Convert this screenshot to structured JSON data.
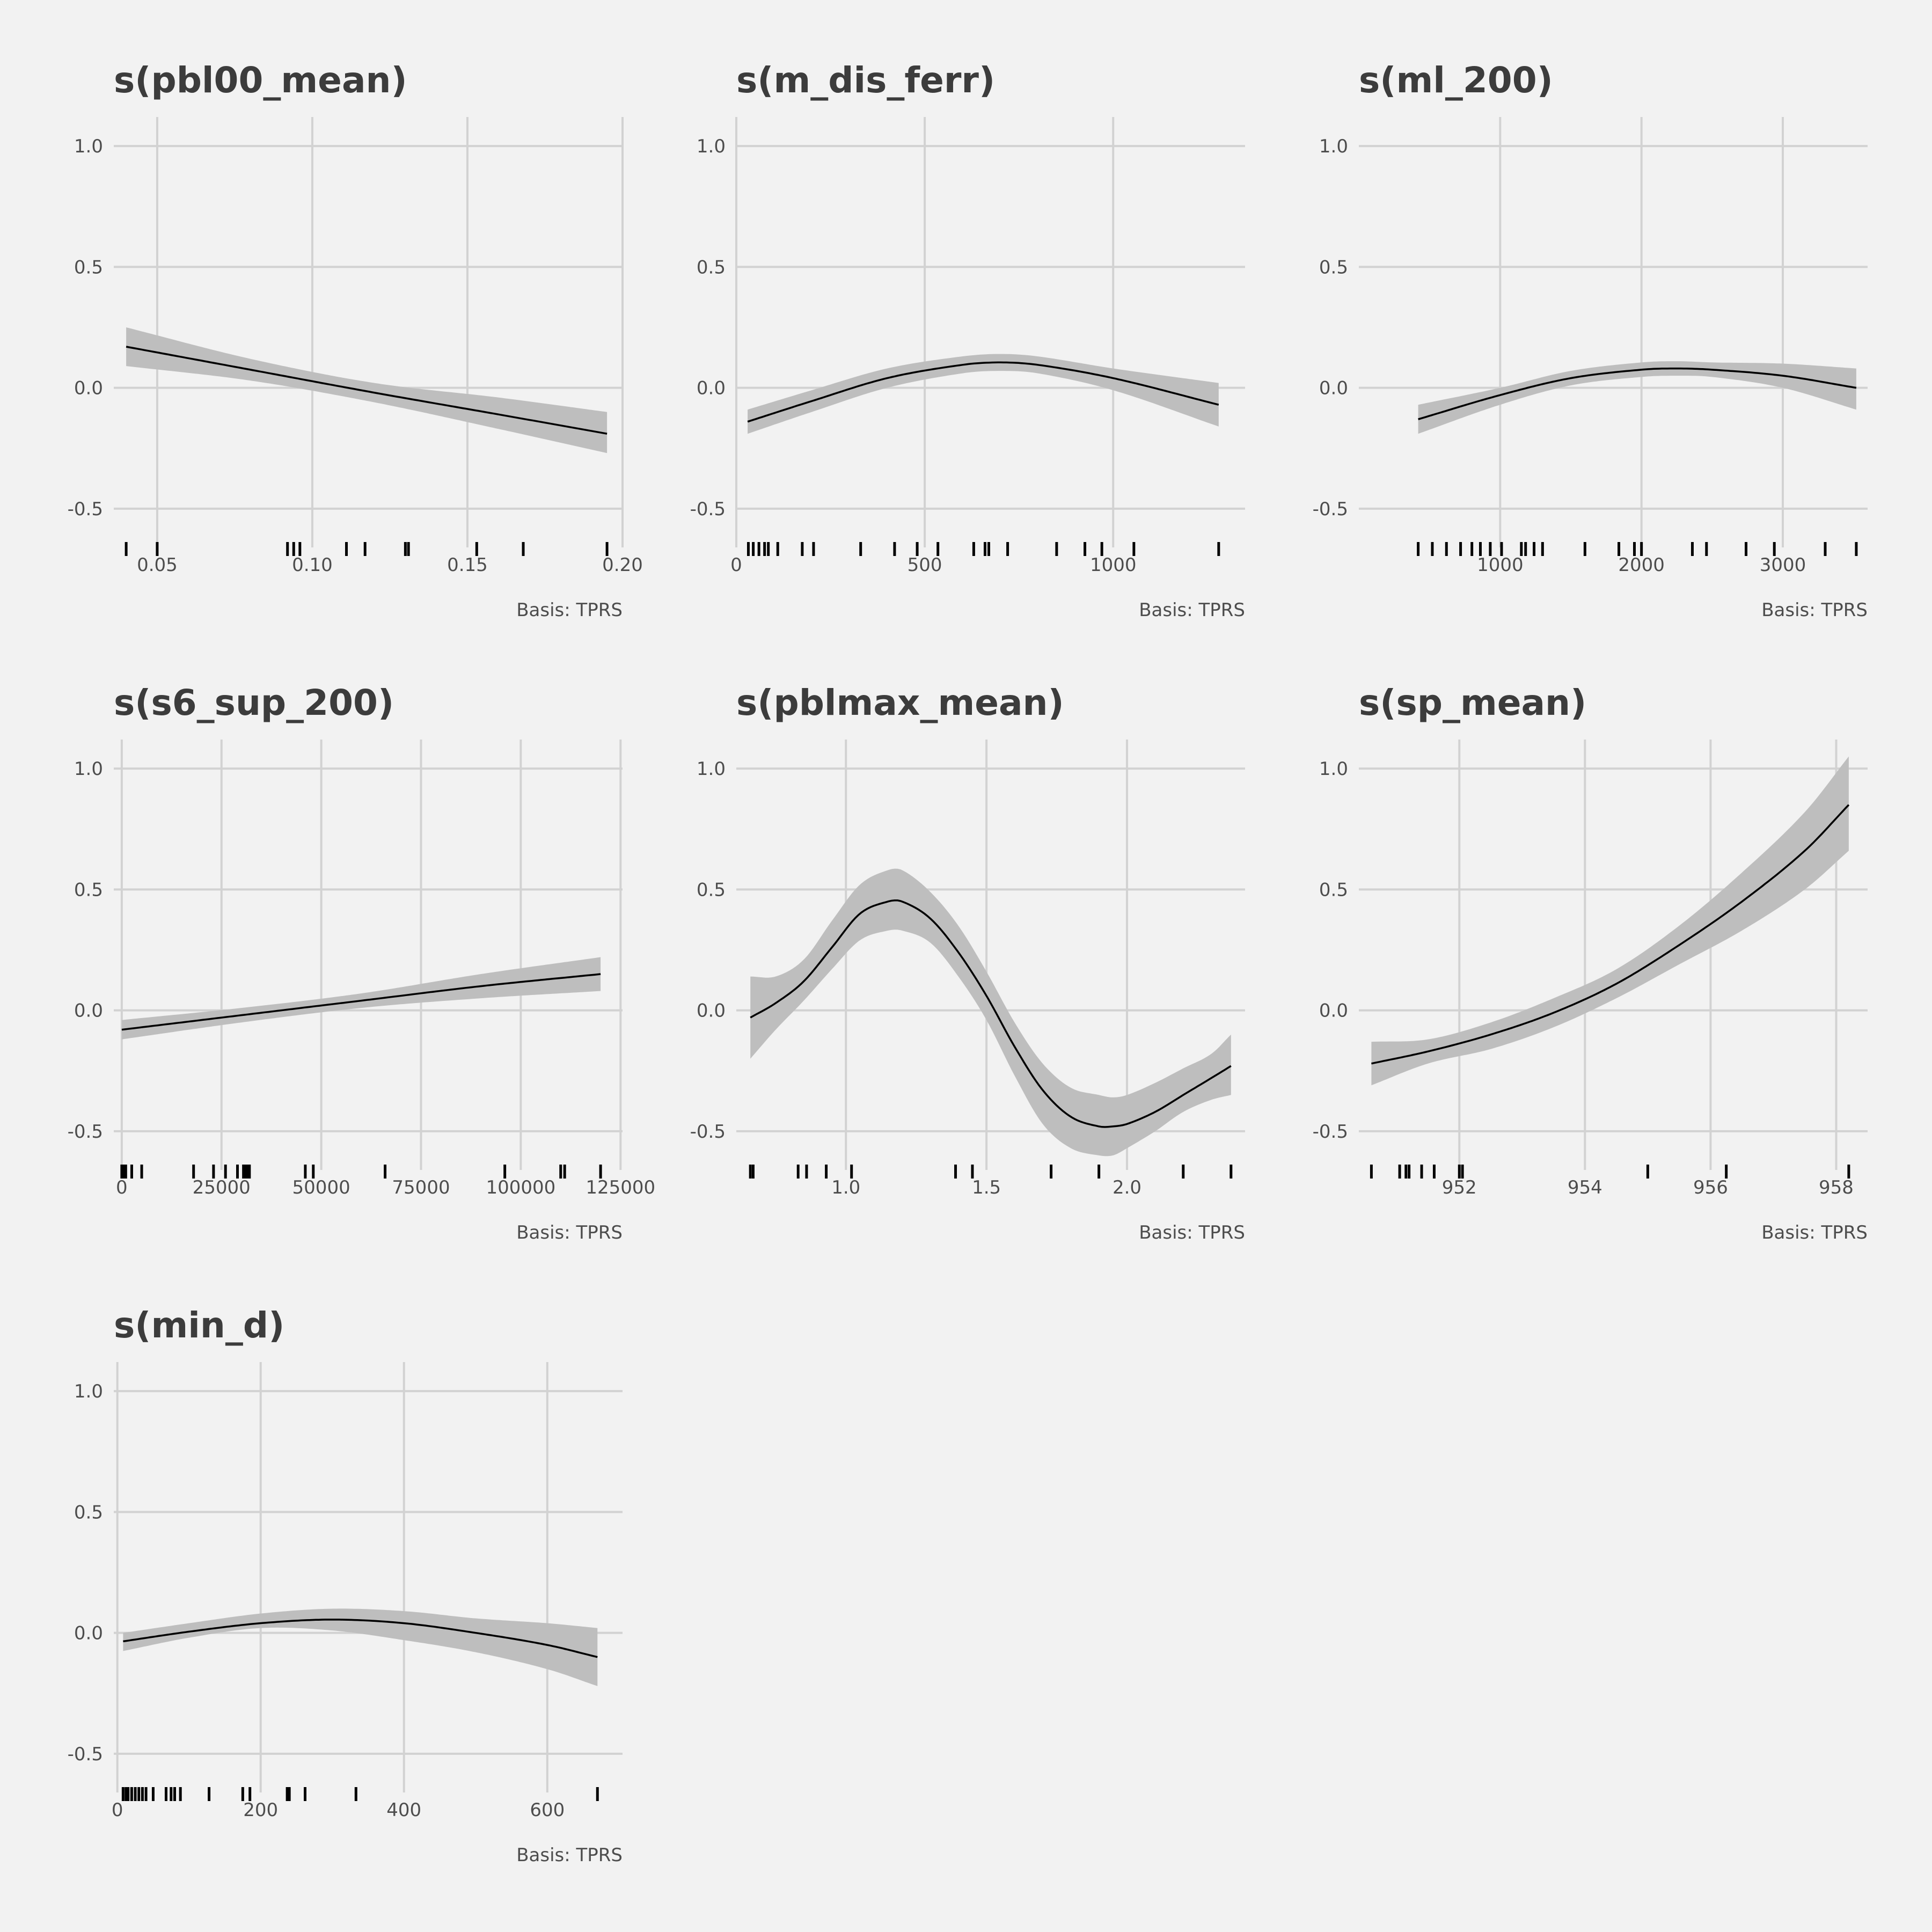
{
  "background": "#F2F2F2",
  "colors": {
    "band": "#BEBEBE",
    "line": "#000000",
    "grid": "#D2D2D2",
    "text": "#3C3C3C"
  },
  "chart_data": [
    {
      "type": "line",
      "title": "s(pbl00_mean)",
      "caption": "Basis: TPRS",
      "xlim": [
        0.036,
        0.2
      ],
      "ylim": [
        -0.66,
        1.12
      ],
      "x_ticks": [
        0.05,
        0.1,
        0.15,
        0.2
      ],
      "x_tick_labels": [
        "0.05",
        "0.10",
        "0.15",
        "0.20"
      ],
      "y_ticks": [
        1.0,
        0.5,
        0.0,
        -0.5
      ],
      "y_tick_labels": [
        "1.0",
        "0.5",
        "0.0",
        "-0.5"
      ],
      "x": [
        0.04,
        0.08,
        0.12,
        0.16,
        0.195
      ],
      "y": [
        0.17,
        0.075,
        -0.02,
        -0.11,
        -0.19
      ],
      "lower": [
        0.09,
        0.03,
        -0.06,
        -0.17,
        -0.27
      ],
      "upper": [
        0.25,
        0.12,
        0.02,
        -0.04,
        -0.1
      ],
      "rug": [
        0.04,
        0.05,
        0.092,
        0.094,
        0.096,
        0.111,
        0.117,
        0.13,
        0.131,
        0.153,
        0.168,
        0.195
      ]
    },
    {
      "type": "line",
      "title": "s(m_dis_ferr)",
      "caption": "Basis: TPRS",
      "xlim": [
        0,
        1350
      ],
      "ylim": [
        -0.66,
        1.12
      ],
      "x_ticks": [
        0,
        500,
        1000
      ],
      "x_tick_labels": [
        "0",
        "500",
        "1000"
      ],
      "y_ticks": [
        1.0,
        0.5,
        0.0,
        -0.5
      ],
      "y_tick_labels": [
        "1.0",
        "0.5",
        "0.0",
        "-0.5"
      ],
      "x": [
        30,
        200,
        400,
        600,
        700,
        800,
        1000,
        1280
      ],
      "y": [
        -0.14,
        -0.055,
        0.04,
        0.095,
        0.105,
        0.095,
        0.04,
        -0.07
      ],
      "lower": [
        -0.19,
        -0.1,
        0.0,
        0.06,
        0.07,
        0.06,
        -0.01,
        -0.16
      ],
      "upper": [
        -0.09,
        -0.01,
        0.08,
        0.13,
        0.14,
        0.13,
        0.08,
        0.02
      ],
      "rug": [
        32,
        45,
        60,
        75,
        85,
        110,
        175,
        205,
        330,
        420,
        480,
        535,
        630,
        660,
        670,
        720,
        850,
        925,
        970,
        1055,
        1280
      ]
    },
    {
      "type": "line",
      "title": "s(ml_200)",
      "caption": "Basis: TPRS",
      "xlim": [
        0,
        3600
      ],
      "ylim": [
        -0.66,
        1.12
      ],
      "x_ticks": [
        1000,
        2000,
        3000
      ],
      "x_tick_labels": [
        "1000",
        "2000",
        "3000"
      ],
      "y_ticks": [
        1.0,
        0.5,
        0.0,
        -0.5
      ],
      "y_tick_labels": [
        "1.0",
        "0.5",
        "0.0",
        "-0.5"
      ],
      "x": [
        420,
        1000,
        1500,
        2000,
        2250,
        2500,
        3000,
        3520
      ],
      "y": [
        -0.13,
        -0.03,
        0.04,
        0.075,
        0.08,
        0.075,
        0.05,
        0.0
      ],
      "lower": [
        -0.19,
        -0.07,
        0.01,
        0.045,
        0.05,
        0.045,
        0.0,
        -0.09
      ],
      "upper": [
        -0.07,
        0.0,
        0.07,
        0.105,
        0.11,
        0.105,
        0.1,
        0.08
      ],
      "rug": [
        420,
        520,
        620,
        720,
        800,
        860,
        930,
        1010,
        1150,
        1180,
        1240,
        1300,
        1600,
        1840,
        1950,
        2000,
        2360,
        2460,
        2740,
        2940,
        3300,
        3520
      ]
    },
    {
      "type": "line",
      "title": "s(s6_sup_200)",
      "caption": "Basis: TPRS",
      "xlim": [
        -2000,
        125500
      ],
      "ylim": [
        -0.66,
        1.12
      ],
      "x_ticks": [
        0,
        25000,
        50000,
        75000,
        100000,
        125000
      ],
      "x_tick_labels": [
        "0",
        "25000",
        "50000",
        "75000",
        "100000",
        "125000"
      ],
      "y_ticks": [
        1.0,
        0.5,
        0.0,
        -0.5
      ],
      "y_tick_labels": [
        "1.0",
        "0.5",
        "0.0",
        "-0.5"
      ],
      "x": [
        0,
        30000,
        60000,
        90000,
        120000
      ],
      "y": [
        -0.08,
        -0.02,
        0.04,
        0.1,
        0.15
      ],
      "lower": [
        -0.12,
        -0.05,
        0.01,
        0.05,
        0.08
      ],
      "upper": [
        -0.04,
        0.01,
        0.07,
        0.15,
        0.22
      ],
      "rug": [
        0,
        500,
        1000,
        2500,
        5000,
        18000,
        23000,
        26000,
        29000,
        30500,
        31000,
        31500,
        32000,
        46000,
        48000,
        66000,
        96000,
        110000,
        111000,
        120000
      ]
    },
    {
      "type": "line",
      "title": "s(pblmax_mean)",
      "caption": "Basis: TPRS",
      "xlim": [
        0.61,
        2.42
      ],
      "ylim": [
        -0.66,
        1.12
      ],
      "x_ticks": [
        1.0,
        1.5,
        2.0
      ],
      "x_tick_labels": [
        "1.0",
        "1.5",
        "2.0"
      ],
      "y_ticks": [
        1.0,
        0.5,
        0.0,
        -0.5
      ],
      "y_tick_labels": [
        "1.0",
        "0.5",
        "0.0",
        "-0.5"
      ],
      "x": [
        0.66,
        0.75,
        0.85,
        0.95,
        1.05,
        1.15,
        1.2,
        1.3,
        1.4,
        1.5,
        1.6,
        1.7,
        1.8,
        1.9,
        1.95,
        2.0,
        2.1,
        2.2,
        2.3,
        2.37
      ],
      "y": [
        -0.03,
        0.03,
        0.12,
        0.26,
        0.4,
        0.45,
        0.45,
        0.38,
        0.24,
        0.06,
        -0.15,
        -0.33,
        -0.44,
        -0.48,
        -0.48,
        -0.47,
        -0.42,
        -0.35,
        -0.28,
        -0.23
      ],
      "lower": [
        -0.2,
        -0.08,
        0.04,
        0.17,
        0.29,
        0.33,
        0.33,
        0.28,
        0.14,
        -0.04,
        -0.27,
        -0.47,
        -0.57,
        -0.6,
        -0.6,
        -0.57,
        -0.5,
        -0.42,
        -0.37,
        -0.35
      ],
      "upper": [
        0.14,
        0.14,
        0.21,
        0.37,
        0.52,
        0.58,
        0.58,
        0.49,
        0.35,
        0.16,
        -0.05,
        -0.22,
        -0.32,
        -0.35,
        -0.36,
        -0.35,
        -0.3,
        -0.24,
        -0.18,
        -0.1
      ],
      "rug": [
        0.66,
        0.67,
        0.83,
        0.86,
        0.93,
        1.02,
        1.39,
        1.45,
        1.73,
        1.9,
        2.2,
        2.37
      ]
    },
    {
      "type": "line",
      "title": "s(sp_mean)",
      "caption": "Basis: TPRS",
      "xlim": [
        950.4,
        958.5
      ],
      "ylim": [
        -0.66,
        1.12
      ],
      "x_ticks": [
        952,
        954,
        956,
        958
      ],
      "x_tick_labels": [
        "952",
        "954",
        "956",
        "958"
      ],
      "y_ticks": [
        1.0,
        0.5,
        0.0,
        -0.5
      ],
      "y_tick_labels": [
        "1.0",
        "0.5",
        "0.0",
        "-0.5"
      ],
      "x": [
        950.6,
        951.5,
        952.5,
        953.5,
        954.5,
        955.5,
        956.5,
        957.5,
        958.2
      ],
      "y": [
        -0.22,
        -0.17,
        -0.1,
        -0.01,
        0.11,
        0.27,
        0.45,
        0.66,
        0.85
      ],
      "lower": [
        -0.31,
        -0.22,
        -0.16,
        -0.07,
        0.05,
        0.19,
        0.33,
        0.5,
        0.66
      ],
      "upper": [
        -0.13,
        -0.12,
        -0.05,
        0.05,
        0.17,
        0.35,
        0.57,
        0.82,
        1.05
      ],
      "rug": [
        950.6,
        951.05,
        951.15,
        951.2,
        951.4,
        951.6,
        952.0,
        952.05,
        955.0,
        956.25,
        958.2
      ]
    },
    {
      "type": "line",
      "title": "s(min_d)",
      "caption": "Basis: TPRS",
      "xlim": [
        -5,
        705
      ],
      "ylim": [
        -0.66,
        1.12
      ],
      "x_ticks": [
        0,
        200,
        400,
        600
      ],
      "x_tick_labels": [
        "0",
        "200",
        "400",
        "600"
      ],
      "y_ticks": [
        1.0,
        0.5,
        0.0,
        -0.5
      ],
      "y_tick_labels": [
        "1.0",
        "0.5",
        "0.0",
        "-0.5"
      ],
      "x": [
        8,
        100,
        200,
        300,
        400,
        500,
        600,
        670
      ],
      "y": [
        -0.035,
        0.005,
        0.04,
        0.055,
        0.04,
        0.0,
        -0.05,
        -0.1
      ],
      "lower": [
        -0.075,
        -0.02,
        0.02,
        0.01,
        -0.03,
        -0.08,
        -0.15,
        -0.22
      ],
      "upper": [
        0.0,
        0.04,
        0.08,
        0.1,
        0.09,
        0.06,
        0.04,
        0.02
      ],
      "rug": [
        8,
        12,
        15,
        20,
        25,
        30,
        35,
        40,
        50,
        68,
        75,
        80,
        88,
        128,
        175,
        185,
        237,
        240,
        262,
        333,
        670
      ]
    }
  ]
}
